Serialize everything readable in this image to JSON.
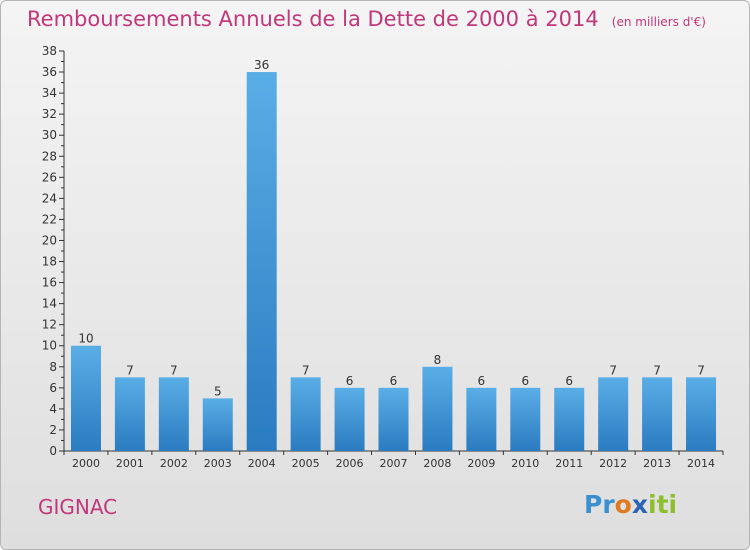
{
  "header": {
    "title": "Remboursements Annuels de la Dette de 2000 à 2014",
    "subtitle": "(en milliers d'€)"
  },
  "footer": {
    "commune": "GIGNAC",
    "brand": [
      "P",
      "r",
      "o",
      "x",
      "i",
      "ti"
    ]
  },
  "colors": {
    "title": "#c0387a",
    "bar_top": "#5aaee6",
    "bar_bottom": "#2a7bc0",
    "axis": "#333333"
  },
  "chart_data": {
    "type": "bar",
    "categories": [
      "2000",
      "2001",
      "2002",
      "2003",
      "2004",
      "2005",
      "2006",
      "2007",
      "2008",
      "2009",
      "2010",
      "2011",
      "2012",
      "2013",
      "2014"
    ],
    "values": [
      10,
      7,
      7,
      5,
      36,
      7,
      6,
      6,
      8,
      6,
      6,
      6,
      7,
      7,
      7
    ],
    "ylim": [
      0,
      38
    ],
    "yticks": [
      0,
      2,
      4,
      6,
      8,
      10,
      12,
      14,
      16,
      18,
      20,
      22,
      24,
      26,
      28,
      30,
      32,
      34,
      36,
      38
    ],
    "grid": false,
    "legend": "none"
  }
}
